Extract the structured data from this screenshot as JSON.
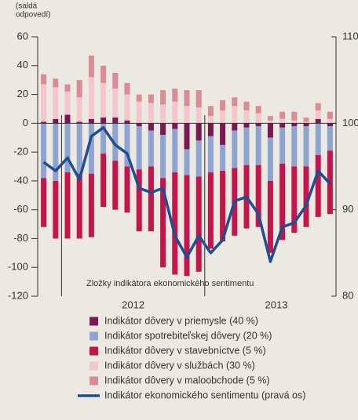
{
  "chart_data": {
    "type": "stacked_bar_line",
    "y_label": [
      "(saldá",
      "odpovedí)"
    ],
    "annotation": "Zložky indikátora ekonomického sentimentu",
    "categories": [
      null,
      null,
      null,
      null,
      null,
      null,
      null,
      null,
      null,
      null,
      null,
      null,
      null,
      null,
      null,
      null,
      null,
      null,
      null,
      null,
      null,
      null,
      null,
      null,
      null
    ],
    "year_labels": [
      "2012",
      "2013"
    ],
    "ylim": [
      -120,
      60
    ],
    "yticks": [
      -120,
      -100,
      -80,
      -60,
      -40,
      -20,
      0,
      20,
      40,
      60
    ],
    "y2lim": [
      80,
      110
    ],
    "y2ticks": [
      80,
      90,
      100,
      110
    ],
    "series": [
      {
        "name": "Indikátor dôvery v priemysle (40 %)",
        "color": "#7b1751",
        "values": [
          1,
          3,
          6,
          1,
          3,
          4,
          4,
          2,
          -2,
          -5,
          -8,
          -4,
          -18,
          -12,
          -9,
          -15,
          -5,
          -3,
          -2,
          -10,
          -3,
          -2,
          -2,
          3,
          -2
        ]
      },
      {
        "name": "Indikátor spotrebiteľskej dôvery (20 %)",
        "color": "#8ea3d0",
        "values": [
          -38,
          -40,
          -34,
          -35,
          -35,
          -21,
          -26,
          -30,
          -30,
          -25,
          -30,
          -30,
          -18,
          -25,
          -25,
          -18,
          -26,
          -26,
          -27,
          -30,
          -25,
          -28,
          -28,
          -22,
          -17
        ]
      },
      {
        "name": "Indikátor dôvery v stavebníctve (5 %)",
        "color": "#c4164c",
        "values": [
          -34,
          -40,
          -46,
          -45,
          -44,
          -37,
          -34,
          -32,
          -43,
          -45,
          -62,
          -71,
          -70,
          -66,
          -53,
          -49,
          -47,
          -44,
          -43,
          -50,
          -53,
          -46,
          -42,
          -43,
          -44
        ]
      },
      {
        "name": "Indikátor dôvery v službách (30 %)",
        "color": "#f3c5cc",
        "values": [
          26,
          22,
          16,
          17,
          29,
          24,
          20,
          18,
          15,
          14,
          13,
          15,
          12,
          11,
          5,
          9,
          12,
          9,
          7,
          2,
          3,
          2,
          1,
          6,
          3
        ]
      },
      {
        "name": "Indikátor dôvery v maloobchode (5 %)",
        "color": "#da8c95",
        "values": [
          7,
          6,
          5,
          12,
          15,
          12,
          11,
          8,
          5,
          6,
          10,
          9,
          11,
          12,
          7,
          7,
          6,
          6,
          5,
          3,
          5,
          6,
          3,
          5,
          5
        ]
      },
      {
        "name": "Indikátor ekonomického sentimentu (pravá os)",
        "color": "#1f4f8e",
        "axis": "y2",
        "values": [
          95.5,
          94.5,
          96,
          93.5,
          98.5,
          99.5,
          97.5,
          96.5,
          92.5,
          92,
          92.5,
          87,
          84.5,
          87,
          85,
          86.5,
          91,
          91.5,
          89.5,
          84,
          88,
          88.5,
          90.5,
          94.5,
          93
        ]
      }
    ]
  }
}
